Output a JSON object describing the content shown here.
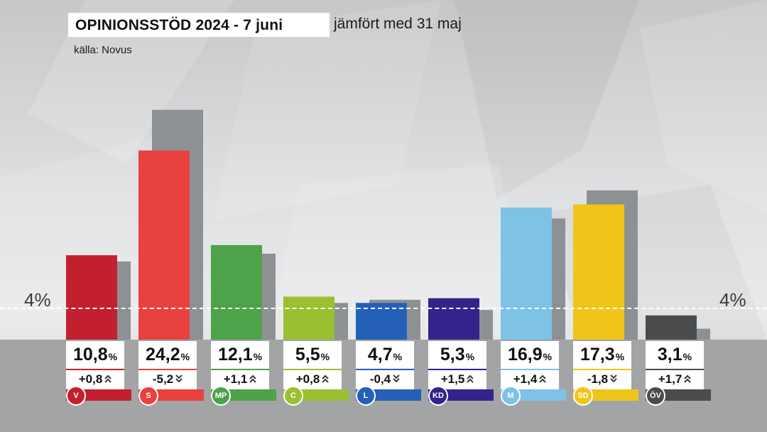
{
  "header": {
    "title": "OPINIONSSTÖD 2024 - 7 juni",
    "subtitle": "jämfört med 31 maj",
    "source": "källa: Novus"
  },
  "threshold": {
    "value": 4,
    "label_left": "4%",
    "label_right": "4%"
  },
  "unit_label": "%",
  "chart_data": {
    "type": "bar",
    "title": "OPINIONSSTÖD 2024 - 7 juni",
    "subtitle": "jämfört med 31 maj",
    "categories": [
      "V",
      "S",
      "MP",
      "C",
      "L",
      "KD",
      "M",
      "SD",
      "ÖV"
    ],
    "series": [
      {
        "name": "",
        "values": [
          10.8,
          24.2,
          12.1,
          5.5,
          4.7,
          5.3,
          16.9,
          17.3,
          3.1
        ]
      },
      {
        "name": "",
        "values": [
          10.0,
          29.4,
          11.0,
          4.7,
          5.1,
          3.8,
          15.5,
          19.1,
          1.4
        ]
      }
    ],
    "value_labels": [
      "10,8",
      "24,2",
      "12,1",
      "5,5",
      "4,7",
      "5,3",
      "16,9",
      "17,3",
      "3,1"
    ],
    "change_labels": [
      "+0,8",
      "-5,2",
      "+1,1",
      "+0,8",
      "-0,4",
      "+1,5",
      "+1,4",
      "-1,8",
      "+1,7"
    ],
    "change_direction": [
      "up",
      "down",
      "up",
      "up",
      "down",
      "up",
      "up",
      "down",
      "up"
    ],
    "colors": [
      "#c2202f",
      "#e8413f",
      "#4ea24a",
      "#9ac031",
      "#2560b8",
      "#35228b",
      "#7ec2e6",
      "#f0c51a",
      "#4a4b4d"
    ],
    "previous_color": "#8e9194",
    "reference_line": 4,
    "grid": false,
    "legend": "none"
  }
}
